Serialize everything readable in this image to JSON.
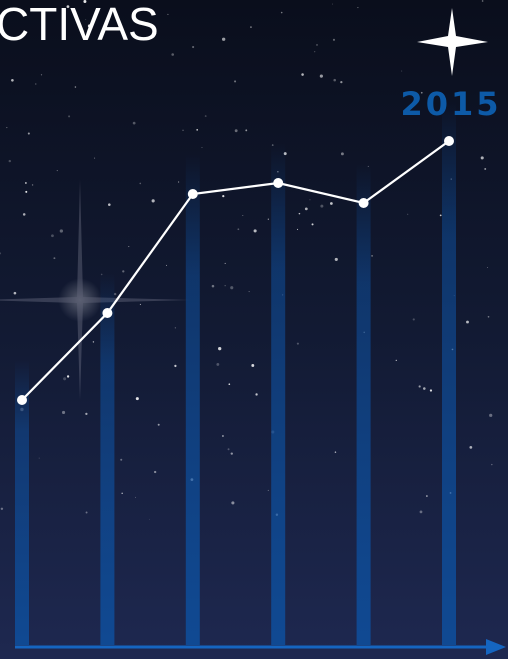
{
  "chart_data": {
    "type": "line",
    "title": "CTIVAS",
    "categories": [
      null,
      null,
      null,
      null,
      null,
      "2015"
    ],
    "values": [
      245,
      332,
      451,
      462,
      442,
      504
    ],
    "ylim": [
      0,
      520
    ],
    "color": "#ffffff",
    "bar_color": "#0e4d9a",
    "label_color": "#0d5aa7"
  }
}
